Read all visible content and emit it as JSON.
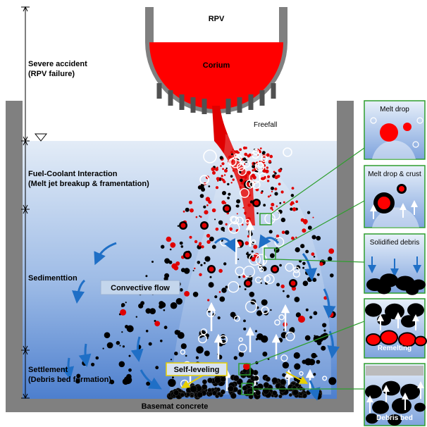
{
  "rpv": {
    "label": "RPV",
    "corium_label": "Corium"
  },
  "freefall_label": "Freefall",
  "phases": [
    {
      "line1": "Severe accident",
      "line2": "(RPV failure)"
    },
    {
      "line1": "Fuel-Coolant Interaction",
      "line2": "(Melt jet breakup & framentation)"
    },
    {
      "line1": "Sedimenttion",
      "line2": ""
    },
    {
      "line1": "Settlement",
      "line2": "(Debris bed formation)"
    }
  ],
  "convective_label": "Convective flow",
  "self_leveling_label": "Self-leveling",
  "basemat_label": "Basemat concrete",
  "insets": [
    {
      "title": "Melt drop"
    },
    {
      "title": "Melt drop & crust"
    },
    {
      "title": "Solidified debris"
    },
    {
      "title": "Remelting"
    },
    {
      "title": "Debris bed"
    }
  ],
  "colors": {
    "melt": "#ff0000",
    "debris": "#000000",
    "water_top": "#dbe7f5",
    "water_bottom": "#4a7fcf",
    "pool_wall": "#808080",
    "arrow": "#1f6fc6",
    "leader": "#2e9e2e"
  }
}
